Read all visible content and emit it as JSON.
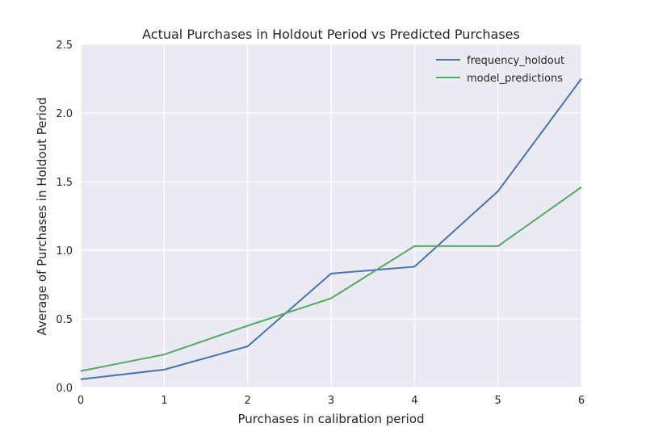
{
  "chart_data": {
    "type": "line",
    "title": "Actual Purchases in Holdout Period vs Predicted Purchases",
    "xlabel": "Purchases in calibration period",
    "ylabel": "Average of Purchases in Holdout Period",
    "x": [
      0,
      1,
      2,
      3,
      4,
      5,
      6
    ],
    "xlim": [
      0,
      6
    ],
    "ylim": [
      0,
      2.5
    ],
    "x_ticks": [
      "0",
      "1",
      "2",
      "3",
      "4",
      "5",
      "6"
    ],
    "y_ticks": [
      "0.0",
      "0.5",
      "1.0",
      "1.5",
      "2.0",
      "2.5"
    ],
    "grid": true,
    "legend_position": "top-right",
    "series": [
      {
        "name": "frequency_holdout",
        "color": "#4c72b0",
        "values": [
          0.06,
          0.13,
          0.3,
          0.83,
          0.88,
          1.43,
          2.25
        ]
      },
      {
        "name": "model_predictions",
        "color": "#55a868",
        "values": [
          0.12,
          0.24,
          0.45,
          0.65,
          1.03,
          1.03,
          1.46
        ]
      }
    ],
    "background_color": "#eaeaf2",
    "grid_color": "#ffffff"
  }
}
